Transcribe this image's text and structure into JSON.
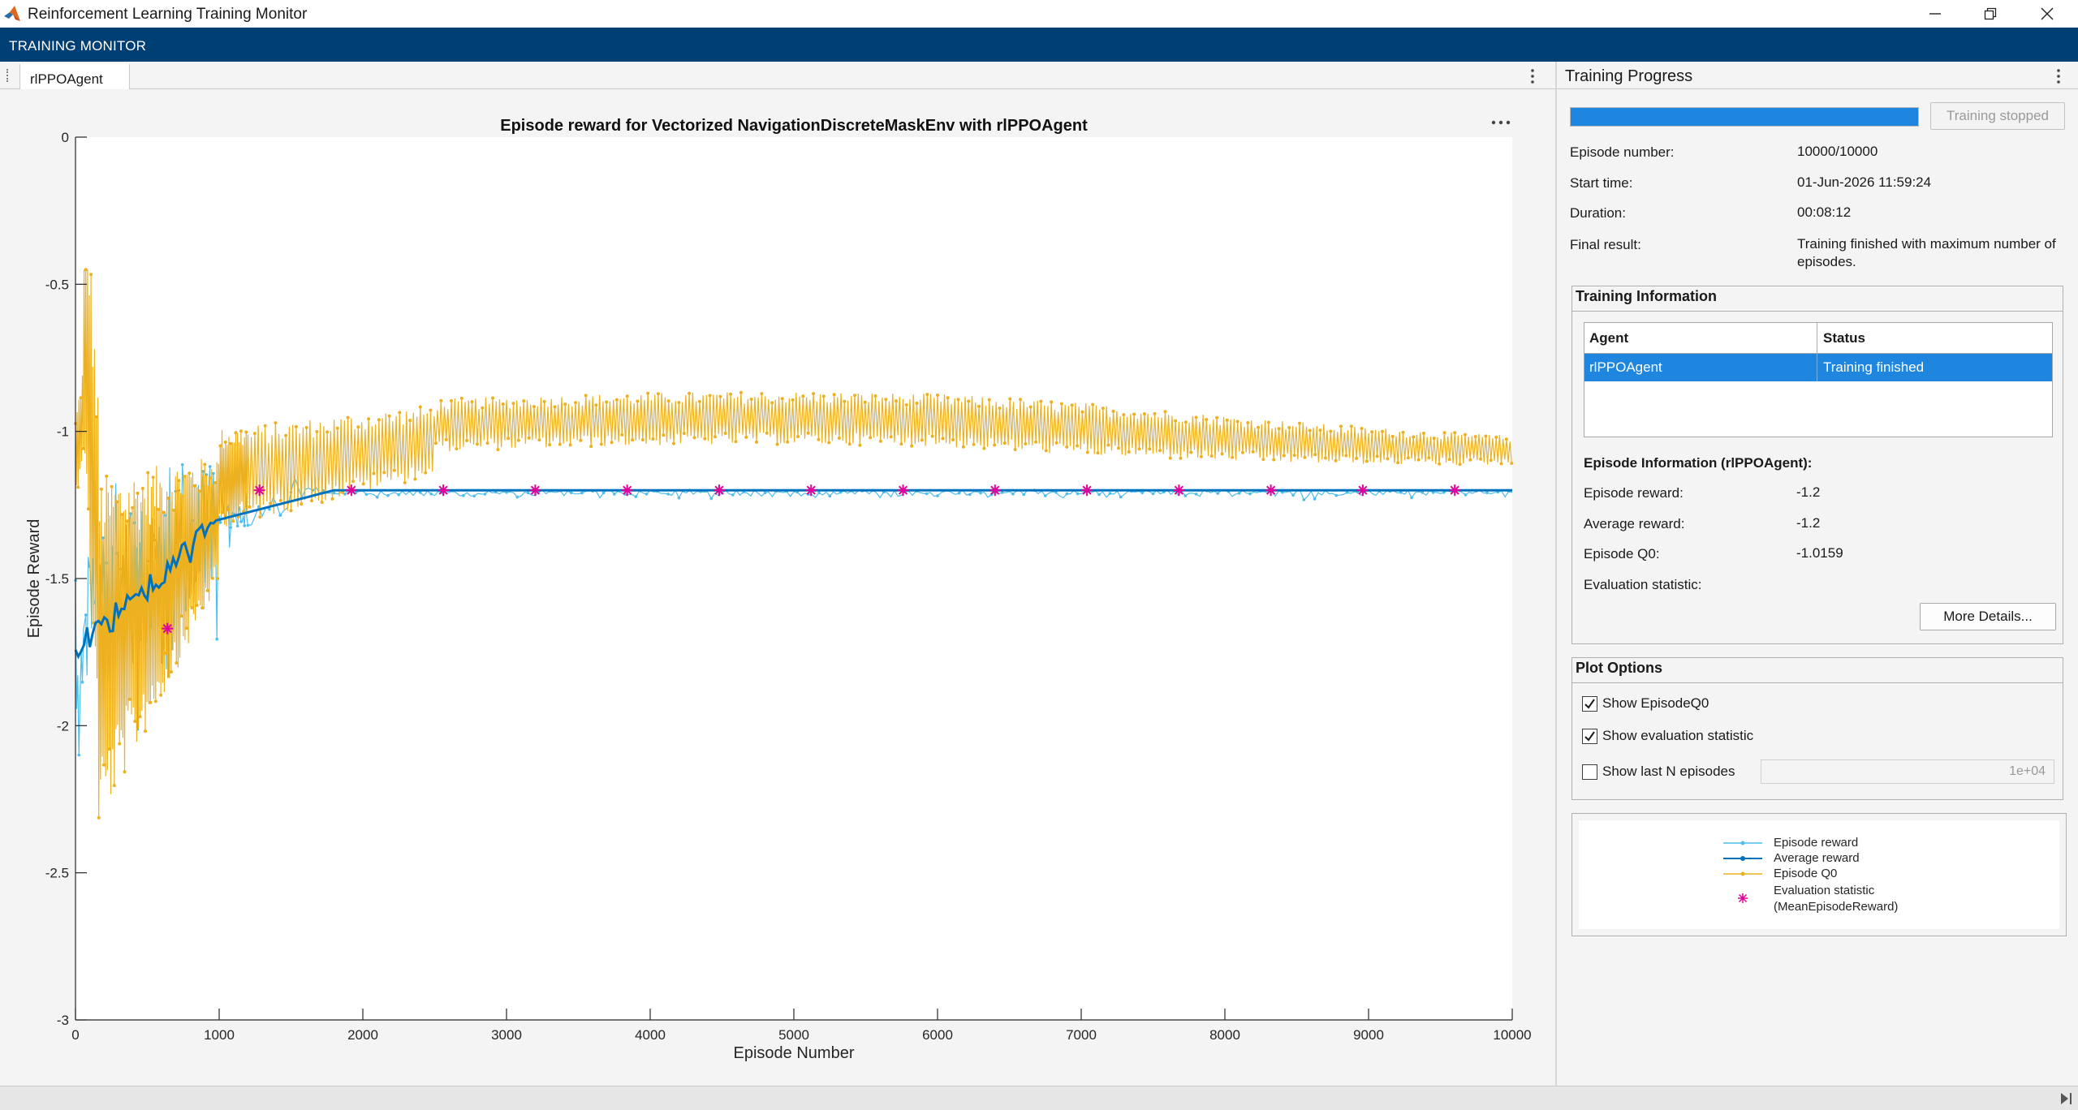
{
  "window": {
    "title": "Reinforcement Learning Training Monitor",
    "toolstrip_title": "TRAINING MONITOR"
  },
  "document": {
    "tab_label": "rlPPOAgent"
  },
  "chart_data": {
    "type": "line",
    "title": "Episode reward for Vectorized NavigationDiscreteMaskEnv with rlPPOAgent",
    "xlabel": "Episode Number",
    "ylabel": "Episode Reward",
    "xlim": [
      0,
      10000
    ],
    "ylim": [
      -3,
      0
    ],
    "xticks": [
      0,
      1000,
      2000,
      3000,
      4000,
      5000,
      6000,
      7000,
      8000,
      9000,
      10000
    ],
    "xtick_labels": [
      "0",
      "1000",
      "2000",
      "3000",
      "4000",
      "5000",
      "6000",
      "7000",
      "8000",
      "9000",
      "10000"
    ],
    "yticks": [
      0,
      -0.5,
      -1,
      -1.5,
      -2,
      -2.5,
      -3
    ],
    "ytick_labels": [
      "0",
      "-0.5",
      "-1",
      "-1.5",
      "-2",
      "-2.5",
      "-3"
    ],
    "grid": false,
    "series": [
      {
        "name": "Episode reward",
        "color": "#4dbeee"
      },
      {
        "name": "Average reward",
        "color": "#0072bd"
      },
      {
        "name": "Episode Q0",
        "color": "#edb120"
      },
      {
        "name": "Evaluation statistic (MeanEpisodeReward)",
        "color": "#e0009a",
        "x": [
          640,
          1280,
          1920,
          2560,
          3200,
          3840,
          4480,
          5120,
          5760,
          6400,
          7040,
          7680,
          8320,
          8960,
          9600
        ],
        "y": [
          -1.67,
          -1.2,
          -1.2,
          -1.2,
          -1.2,
          -1.2,
          -1.2,
          -1.2,
          -1.2,
          -1.2,
          -1.2,
          -1.2,
          -1.2,
          -1.2,
          -1.2
        ]
      }
    ]
  },
  "progress": {
    "panel_title": "Training Progress",
    "fraction": 1.0,
    "stop_label": "Training stopped",
    "episode_number_label": "Episode number:",
    "episode_number": "10000/10000",
    "start_time_label": "Start time:",
    "start_time": "01-Jun-2026 11:59:24",
    "duration_label": "Duration:",
    "duration": "00:08:12",
    "final_result_label": "Final result:",
    "final_result": "Training finished with maximum number of episodes."
  },
  "training_info": {
    "title": "Training Information",
    "col_agent": "Agent",
    "col_status": "Status",
    "row_agent": "rlPPOAgent",
    "row_status": "Training finished",
    "episode_info_title": "Episode Information (rlPPOAgent):",
    "episode_reward_label": "Episode reward:",
    "episode_reward": "-1.2",
    "average_reward_label": "Average reward:",
    "average_reward": "-1.2",
    "episode_q0_label": "Episode Q0:",
    "episode_q0": "-1.0159",
    "eval_stat_label": "Evaluation statistic:",
    "more_details": "More Details..."
  },
  "plot_options": {
    "title": "Plot Options",
    "show_q0": "Show EpisodeQ0",
    "show_q0_checked": true,
    "show_eval": "Show evaluation statistic",
    "show_eval_checked": true,
    "show_lastn": "Show last N episodes",
    "show_lastn_checked": false,
    "lastn_value": "1e+04"
  },
  "legend": {
    "episode_reward": "Episode reward",
    "average_reward": "Average reward",
    "episode_q0": "Episode Q0",
    "eval_stat_line1": "Evaluation statistic",
    "eval_stat_line2": "(MeanEpisodeReward)"
  }
}
